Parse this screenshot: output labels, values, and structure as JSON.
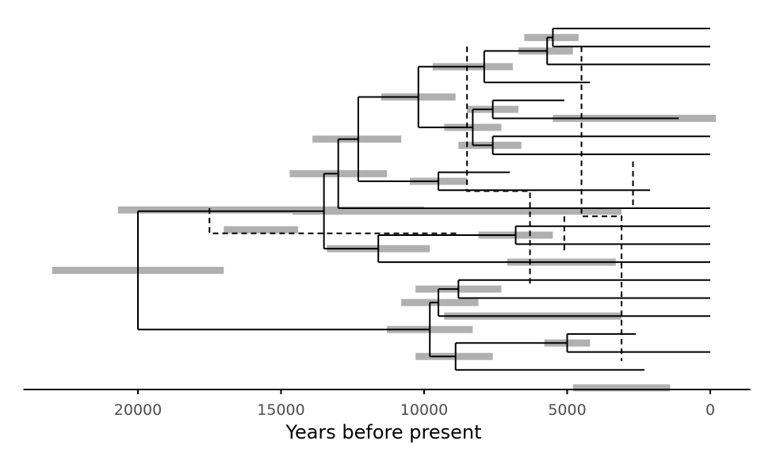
{
  "chart_data": {
    "type": "phylogenetic-tree",
    "xlabel": "Years before present",
    "xlim": [
      24000,
      -1400
    ],
    "x_reversed": true,
    "ticks": [
      20000,
      15000,
      10000,
      5000,
      0
    ],
    "tick_labels": [
      "20000",
      "15000",
      "10000",
      "5000",
      "0"
    ],
    "colors": {
      "tree": "#000000",
      "interval": "#b0b0b0",
      "axis": "#000000",
      "tick_text": "#4d4d4d"
    },
    "tips": [
      {
        "id": 1,
        "time": 0
      },
      {
        "id": 2,
        "time": 0
      },
      {
        "id": 3,
        "time": 0
      },
      {
        "id": 4,
        "time": 4200
      },
      {
        "id": 5,
        "time": 5100
      },
      {
        "id": 6,
        "time": 1100
      },
      {
        "id": 7,
        "time": 0
      },
      {
        "id": 8,
        "time": 0
      },
      {
        "id": 9,
        "time": 7000
      },
      {
        "id": 10,
        "time": 2100
      },
      {
        "id": 11,
        "time": 0
      },
      {
        "id": 12,
        "time": 0
      },
      {
        "id": 13,
        "time": 0
      },
      {
        "id": 14,
        "time": 0
      },
      {
        "id": 15,
        "time": 0
      },
      {
        "id": 16,
        "time": 0
      },
      {
        "id": 17,
        "time": 0
      },
      {
        "id": 18,
        "time": 2600
      },
      {
        "id": 19,
        "time": 0
      },
      {
        "id": 20,
        "time": 2300
      },
      {
        "id": 21,
        "time": 1500
      }
    ],
    "nodes": [
      {
        "id": "n1",
        "time": 5500,
        "children": [
          1,
          2
        ],
        "hpd": [
          6500,
          4600
        ]
      },
      {
        "id": "n2",
        "time": 5700,
        "children": [
          "n1",
          3
        ],
        "hpd": [
          6700,
          4800
        ]
      },
      {
        "id": "n3",
        "time": 7900,
        "children": [
          "n2",
          4
        ],
        "hpd": [
          9700,
          6900
        ]
      },
      {
        "id": "n4",
        "time": 7600,
        "children": [
          5,
          6
        ],
        "hpd": [
          8500,
          6700
        ]
      },
      {
        "id": "n5",
        "time": 7600,
        "children": [
          7,
          8
        ],
        "hpd": [
          8800,
          6600
        ]
      },
      {
        "id": "n6",
        "time": 8300,
        "children": [
          "n4",
          "n5"
        ],
        "hpd": [
          9300,
          7300
        ]
      },
      {
        "id": "n7",
        "time": 10200,
        "children": [
          "n3",
          "n6"
        ],
        "hpd": [
          11500,
          8900
        ]
      },
      {
        "id": "n8",
        "time": 9500,
        "children": [
          9,
          10
        ],
        "hpd": [
          10500,
          8500
        ]
      },
      {
        "id": "n9",
        "time": 12300,
        "children": [
          "n7",
          "n8"
        ],
        "hpd": [
          13900,
          10800
        ]
      },
      {
        "id": "n10",
        "time": 13000,
        "children": [
          "n9",
          11
        ],
        "hpd": [
          14700,
          11300
        ]
      },
      {
        "id": "n11",
        "time": 6800,
        "children": [
          12,
          13
        ],
        "hpd": [
          8100,
          5500
        ]
      },
      {
        "id": "n12",
        "time": 11600,
        "children": [
          "n11",
          14
        ],
        "hpd": [
          13400,
          9800
        ]
      },
      {
        "id": "n13",
        "time": 13500,
        "children": [
          "n10",
          "n12"
        ],
        "hpd": [
          14600,
          3100
        ]
      },
      {
        "id": "n14",
        "time": 8800,
        "children": [
          15,
          16
        ],
        "hpd": [
          10300,
          7300
        ]
      },
      {
        "id": "n15",
        "time": 9500,
        "children": [
          "n14",
          17
        ],
        "hpd": [
          10800,
          8100
        ]
      },
      {
        "id": "n16",
        "time": 5000,
        "children": [
          18,
          19
        ],
        "hpd": [
          5800,
          4200
        ]
      },
      {
        "id": "n17",
        "time": 8900,
        "children": [
          "n16",
          20
        ],
        "hpd": [
          10300,
          7600
        ]
      },
      {
        "id": "n18",
        "time": 9800,
        "children": [
          "n15",
          "n17"
        ],
        "hpd": [
          11300,
          8300
        ]
      },
      {
        "id": "n19",
        "time": 20000,
        "children": [
          "n13",
          "n18"
        ],
        "hpd": [
          23000,
          17000
        ]
      }
    ],
    "tip_intervals": [
      {
        "tip": 6,
        "hpd": [
          5500,
          -200
        ]
      },
      {
        "tip": 14,
        "hpd": [
          7100,
          3300
        ]
      },
      {
        "tip": 17,
        "hpd": [
          9300,
          3100
        ]
      },
      {
        "tip": 21,
        "hpd": [
          4800,
          1400
        ]
      }
    ],
    "extra_intervals": [
      {
        "row": 11.1,
        "hpd": [
          20700,
          10000
        ]
      },
      {
        "row": 12.2,
        "hpd": [
          17000,
          14400
        ]
      }
    ],
    "reticulations": [
      {
        "from": {
          "time": 17500,
          "row": 11
        },
        "to": {
          "time": 8800,
          "row": 12.4
        },
        "via": 12.4
      },
      {
        "from": {
          "time": 8500,
          "row": 2.0
        },
        "to": {
          "time": 6300,
          "row": 15.4
        },
        "via": 10.05,
        "style": "step-down"
      },
      {
        "from": {
          "time": 4500,
          "row": 2.0
        },
        "to": {
          "time": 3100,
          "row": 19.5
        },
        "via": 11.45
      },
      {
        "from": {
          "time": 5100,
          "row": 11.45
        },
        "to": {
          "time": 5100,
          "row": 13.4
        }
      },
      {
        "from": {
          "time": 2700,
          "row": 8.4
        },
        "to": {
          "time": 2700,
          "row": 11
        }
      }
    ]
  }
}
